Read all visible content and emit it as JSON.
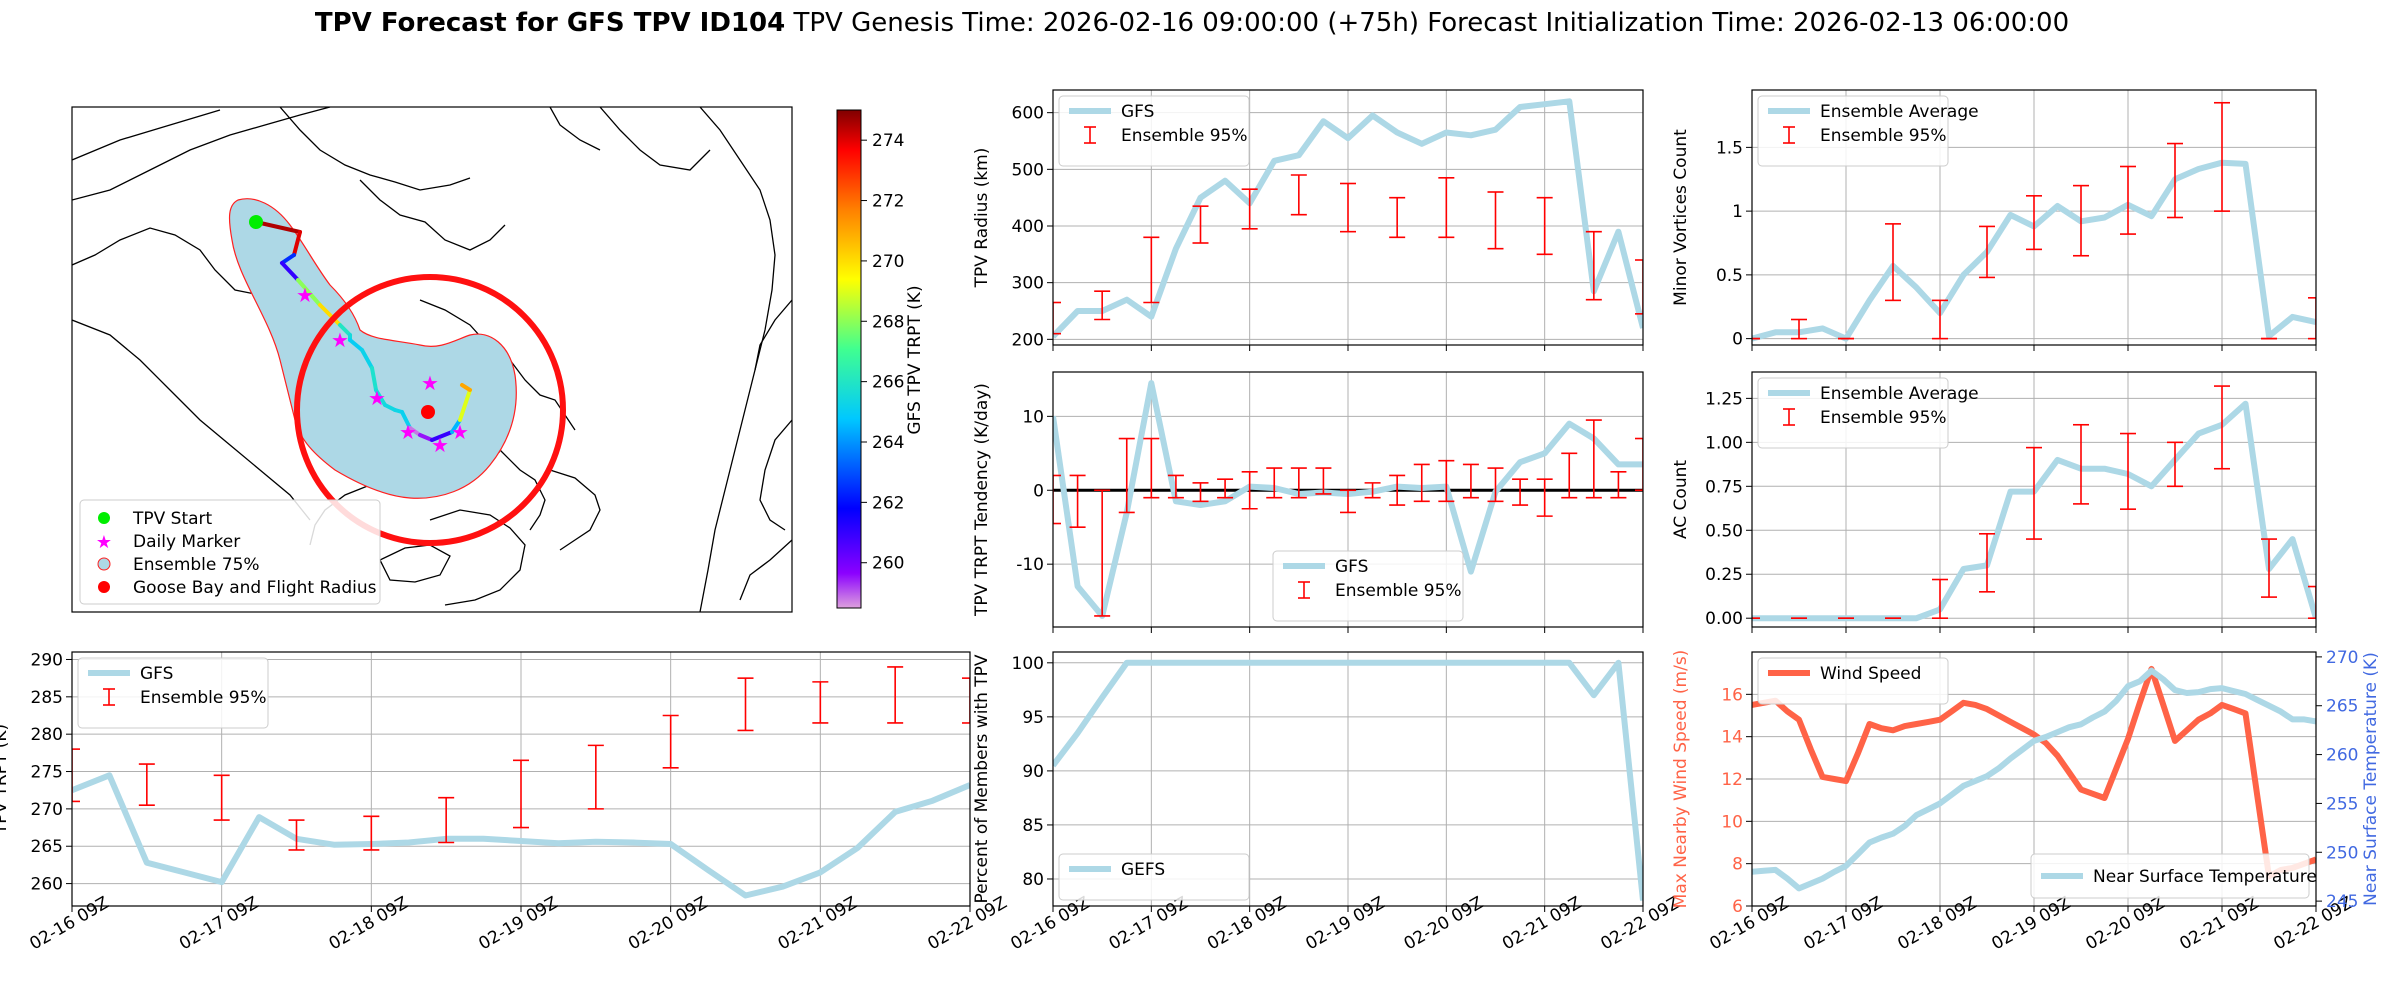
{
  "header": {
    "title_bold": "TPV Forecast for GFS TPV ID104",
    "title_rest": "TPV Genesis Time: 2026-02-16 09:00:00 (+75h)   Forecast Initialization Time: 2026-02-13 06:00:00"
  },
  "colors": {
    "gfs_line": "#add8e6",
    "ens_bar": "#ff0000",
    "wind": "#ff6347",
    "temp_axis": "#4169e1",
    "wind_axis": "#ff6347",
    "map_fill": "#add8e6",
    "flight_radius": "#ff1010",
    "start_marker": "#00ee00",
    "daily_marker": "#ff00ff",
    "goose_bay": "#ff0000"
  },
  "x_dates": [
    "02-16 09Z",
    "02-17 09Z",
    "02-18 09Z",
    "02-19 09Z",
    "02-20 09Z",
    "02-21 09Z",
    "02-22 09Z"
  ],
  "map": {
    "colorbar": {
      "label": "GFS TPV TRPT (K)",
      "ticks": [
        260,
        262,
        264,
        266,
        268,
        270,
        272,
        274
      ],
      "range": [
        258.5,
        275
      ],
      "colormap": "jet-like"
    },
    "legend": [
      "TPV Start",
      "Daily Marker",
      "Ensemble 75%",
      "Goose Bay and Flight Radius"
    ],
    "track_trpt": [
      274.5,
      274.0,
      262.5,
      261.0,
      268.0,
      270.0,
      266.0,
      265.5,
      265.0,
      265.2,
      265.8,
      265.6,
      265.4,
      265.3,
      265.1,
      258.8,
      259.5,
      261.0,
      264.5,
      269.0,
      271.0,
      273.0
    ]
  },
  "chart_data": [
    {
      "id": "radius",
      "type": "line",
      "ylabel": "TPV Radius (km)",
      "ylim": [
        190,
        640
      ],
      "yticks": [
        200,
        300,
        400,
        500,
        600
      ],
      "legend_location": "upper-left",
      "legend": [
        "GFS",
        "Ensemble 95%"
      ],
      "series": [
        {
          "name": "GFS",
          "x": [
            0,
            0.25,
            0.5,
            0.75,
            1,
            1.25,
            1.5,
            1.75,
            2,
            2.25,
            2.5,
            2.75,
            3,
            3.25,
            3.5,
            3.75,
            4,
            4.25,
            4.5,
            4.75,
            5,
            5.25,
            5.5,
            5.75,
            6
          ],
          "values": [
            205,
            250,
            250,
            270,
            240,
            360,
            450,
            480,
            440,
            515,
            525,
            585,
            555,
            595,
            565,
            545,
            565,
            560,
            570,
            610,
            615,
            620,
            285,
            390,
            220
          ]
        }
      ],
      "errorbars": [
        {
          "name": "Ensemble 95%",
          "x": [
            0,
            0.5,
            1,
            1.5,
            2,
            2.5,
            3,
            3.5,
            4,
            4.5,
            5,
            5.5,
            6
          ],
          "low": [
            210,
            235,
            265,
            370,
            395,
            420,
            390,
            380,
            380,
            360,
            350,
            270,
            245
          ],
          "high": [
            265,
            285,
            380,
            435,
            465,
            490,
            475,
            450,
            485,
            460,
            450,
            390,
            340
          ]
        }
      ]
    },
    {
      "id": "tendency",
      "type": "line",
      "ylabel": "TPV TRPT Tendency (K/day)",
      "ylim": [
        -18.5,
        16
      ],
      "yticks": [
        -10,
        0,
        10
      ],
      "legend_location": "lower-center",
      "legend": [
        "GFS",
        "Ensemble 95%"
      ],
      "series": [
        {
          "name": "GFS",
          "x": [
            0,
            0.25,
            0.5,
            0.75,
            1,
            1.25,
            1.5,
            1.75,
            2,
            2.25,
            2.5,
            2.75,
            3,
            3.25,
            3.5,
            3.75,
            4,
            4.25,
            4.5,
            4.75,
            5,
            5.25,
            5.5,
            5.75,
            6
          ],
          "values": [
            10,
            -13,
            -17,
            -3,
            14.5,
            -1.5,
            -2,
            -1.5,
            0.5,
            0.3,
            -0.5,
            -0.3,
            -0.5,
            -0.2,
            0.5,
            0.3,
            0.5,
            -11,
            -0.2,
            3.8,
            5,
            9,
            7,
            3.5,
            3.5
          ]
        }
      ],
      "errorbars": [
        {
          "name": "Ensemble 95%",
          "x": [
            0,
            0.25,
            0.5,
            0.75,
            1,
            1.25,
            1.5,
            1.75,
            2,
            2.25,
            2.5,
            2.75,
            3,
            3.25,
            3.5,
            3.75,
            4,
            4.25,
            4.5,
            4.75,
            5,
            5.25,
            5.5,
            5.75,
            6
          ],
          "low": [
            -4.5,
            -5,
            -17,
            -3,
            -1,
            -1,
            -1.5,
            -1,
            -2.5,
            -1,
            -1,
            -0.5,
            -3,
            -1,
            -2,
            -1.5,
            -1.5,
            -1,
            -1.5,
            -2,
            -3.5,
            -1,
            -1,
            -1,
            0
          ],
          "high": [
            2,
            2,
            0,
            7,
            7,
            2,
            1,
            1.5,
            2.5,
            3,
            3,
            3,
            0,
            1,
            2,
            3.5,
            4,
            3.5,
            3,
            1.5,
            1.5,
            5,
            9.5,
            2.5,
            7
          ]
        }
      ],
      "zero_line": true
    },
    {
      "id": "minor",
      "type": "line",
      "ylabel": "Minor Vortices Count",
      "ylim": [
        -0.05,
        1.95
      ],
      "yticks": [
        0.0,
        0.5,
        1.0,
        1.5
      ],
      "legend_location": "upper-left",
      "legend": [
        "Ensemble Average",
        "Ensemble 95%"
      ],
      "series": [
        {
          "name": "Ensemble Average",
          "x": [
            0,
            0.25,
            0.5,
            0.75,
            1,
            1.25,
            1.5,
            1.75,
            2,
            2.25,
            2.5,
            2.75,
            3,
            3.25,
            3.5,
            3.75,
            4,
            4.25,
            4.5,
            4.75,
            5,
            5.25,
            5.5,
            5.75,
            6
          ],
          "values": [
            0,
            0.05,
            0.05,
            0.08,
            0,
            0.3,
            0.57,
            0.4,
            0.2,
            0.5,
            0.68,
            0.97,
            0.88,
            1.04,
            0.92,
            0.95,
            1.05,
            0.96,
            1.25,
            1.33,
            1.38,
            1.37,
            0.02,
            0.17,
            0.13
          ]
        }
      ],
      "errorbars": [
        {
          "name": "Ensemble 95%",
          "x": [
            0,
            0.5,
            1,
            1.5,
            2,
            2.5,
            3,
            3.5,
            4,
            4.5,
            5,
            5.5,
            6
          ],
          "low": [
            0,
            0,
            0,
            0.3,
            0,
            0.48,
            0.7,
            0.65,
            0.82,
            0.95,
            1.0,
            0,
            0
          ],
          "high": [
            0,
            0.15,
            0,
            0.9,
            0.3,
            0.88,
            1.12,
            1.2,
            1.35,
            1.53,
            1.85,
            0,
            0.32
          ]
        }
      ]
    },
    {
      "id": "ac",
      "type": "line",
      "ylabel": "AC Count",
      "ylim": [
        -0.05,
        1.4
      ],
      "yticks": [
        0.0,
        0.25,
        0.5,
        0.75,
        1.0,
        1.25
      ],
      "yticklabels": [
        "0.00",
        "0.25",
        "0.50",
        "0.75",
        "1.00",
        "1.25"
      ],
      "legend_location": "upper-left",
      "legend": [
        "Ensemble Average",
        "Ensemble 95%"
      ],
      "series": [
        {
          "name": "Ensemble Average",
          "x": [
            0,
            0.25,
            0.5,
            0.75,
            1,
            1.25,
            1.5,
            1.75,
            2,
            2.25,
            2.5,
            2.75,
            3,
            3.25,
            3.5,
            3.75,
            4,
            4.25,
            4.5,
            4.75,
            5,
            5.25,
            5.5,
            5.75,
            6
          ],
          "values": [
            0,
            0,
            0,
            0,
            0,
            0,
            0,
            0,
            0.05,
            0.28,
            0.3,
            0.72,
            0.72,
            0.9,
            0.85,
            0.85,
            0.82,
            0.75,
            0.9,
            1.05,
            1.1,
            1.22,
            0.28,
            0.45,
            0
          ]
        }
      ],
      "errorbars": [
        {
          "name": "Ensemble 95%",
          "x": [
            0,
            0.5,
            1,
            1.5,
            2,
            2.5,
            3,
            3.5,
            4,
            4.5,
            5,
            5.5,
            6
          ],
          "low": [
            0,
            0,
            0,
            0,
            0,
            0.15,
            0.45,
            0.65,
            0.62,
            0.75,
            0.85,
            0.12,
            0
          ],
          "high": [
            0,
            0,
            0,
            0,
            0.22,
            0.48,
            0.97,
            1.1,
            1.05,
            1.0,
            1.32,
            0.45,
            0.18
          ]
        }
      ]
    },
    {
      "id": "trpt",
      "type": "line",
      "ylabel": "TPV TRPT (K)",
      "ylim": [
        257,
        291
      ],
      "yticks": [
        260,
        265,
        270,
        275,
        280,
        285,
        290
      ],
      "legend_location": "upper-left",
      "legend": [
        "GFS",
        "Ensemble 95%"
      ],
      "series": [
        {
          "name": "GFS",
          "x": [
            0,
            0.25,
            0.5,
            0.75,
            1,
            1.25,
            1.5,
            1.75,
            2,
            2.25,
            2.5,
            2.75,
            3,
            3.25,
            3.5,
            3.75,
            4,
            4.25,
            4.5,
            4.75,
            5,
            5.25,
            5.5,
            5.75,
            6
          ],
          "values": [
            272.5,
            274.5,
            262.8,
            261.5,
            260.2,
            268.9,
            266,
            265.2,
            265.3,
            265.5,
            266,
            266,
            265.7,
            265.4,
            265.6,
            265.5,
            265.3,
            261.8,
            258.4,
            259.6,
            261.5,
            264.8,
            269.6,
            271.1,
            273.2
          ]
        }
      ],
      "errorbars": [
        {
          "name": "Ensemble 95%",
          "x": [
            0,
            0.5,
            1,
            1.5,
            2,
            2.5,
            3,
            3.5,
            4,
            4.5,
            5,
            5.5,
            6
          ],
          "low": [
            271,
            270.5,
            268.5,
            264.5,
            264.5,
            265.5,
            267.5,
            270,
            275.5,
            280.5,
            281.5,
            281.5,
            281.5
          ],
          "high": [
            278,
            276,
            274.5,
            268.5,
            269,
            271.5,
            276.5,
            278.5,
            282.5,
            287.5,
            287,
            289,
            287.5
          ]
        }
      ]
    },
    {
      "id": "percent",
      "type": "line",
      "ylabel": "Percent of Members with TPV",
      "ylim": [
        77.5,
        101
      ],
      "yticks": [
        80,
        85,
        90,
        95,
        100
      ],
      "legend_location": "lower-left",
      "legend": [
        "GEFS"
      ],
      "series": [
        {
          "name": "GEFS",
          "x": [
            0,
            0.25,
            0.5,
            0.75,
            1,
            1.5,
            2,
            2.5,
            3,
            3.5,
            4,
            4.5,
            5,
            5.25,
            5.5,
            5.75,
            6
          ],
          "values": [
            90.5,
            93.5,
            96.8,
            100,
            100,
            100,
            100,
            100,
            100,
            100,
            100,
            100,
            100,
            100,
            97,
            100,
            78
          ]
        }
      ]
    },
    {
      "id": "wind_temp",
      "type": "line",
      "ylabel": "Max Nearby Wind Speed (m/s)",
      "ylabel_right": "Near Surface Temperature (K)",
      "ylim": [
        6,
        18
      ],
      "yticks": [
        6,
        8,
        10,
        12,
        14,
        16
      ],
      "ylim_right": [
        244.5,
        270.5
      ],
      "yticks_right": [
        245,
        250,
        255,
        260,
        265,
        270
      ],
      "legend": [
        "Wind Speed",
        "Near Surface Temperature"
      ],
      "series": [
        {
          "name": "Wind Speed",
          "x": [
            0,
            0.125,
            0.25,
            0.375,
            0.5,
            0.625,
            0.75,
            0.875,
            1,
            1.125,
            1.25,
            1.375,
            1.5,
            1.625,
            1.75,
            1.875,
            2,
            2.125,
            2.25,
            2.375,
            2.5,
            2.625,
            2.75,
            2.875,
            3,
            3.125,
            3.25,
            3.375,
            3.5,
            3.625,
            3.75,
            3.875,
            4,
            4.125,
            4.25,
            4.375,
            4.5,
            4.625,
            4.75,
            4.875,
            5,
            5.125,
            5.25,
            5.375,
            5.5,
            5.625,
            5.75,
            5.875,
            6
          ],
          "values": [
            15.5,
            15.6,
            15.7,
            15.2,
            14.8,
            13.4,
            12.1,
            12.0,
            11.9,
            13.2,
            14.6,
            14.4,
            14.3,
            14.5,
            14.6,
            14.7,
            14.8,
            15.2,
            15.6,
            15.5,
            15.3,
            15.0,
            14.7,
            14.4,
            14.1,
            13.7,
            13.1,
            12.3,
            11.5,
            11.3,
            11.1,
            12.5,
            13.9,
            15.6,
            17.2,
            15.5,
            13.8,
            14.3,
            14.8,
            15.1,
            15.5,
            15.3,
            15.1,
            11.2,
            7.4,
            7.7,
            7.8,
            8.0,
            8.2
          ]
        },
        {
          "name": "Near Surface Temperature",
          "x": [
            0,
            0.125,
            0.25,
            0.375,
            0.5,
            0.625,
            0.75,
            0.875,
            1,
            1.125,
            1.25,
            1.375,
            1.5,
            1.625,
            1.75,
            1.875,
            2,
            2.125,
            2.25,
            2.375,
            2.5,
            2.625,
            2.75,
            2.875,
            3,
            3.125,
            3.25,
            3.375,
            3.5,
            3.625,
            3.75,
            3.875,
            4,
            4.125,
            4.25,
            4.375,
            4.5,
            4.625,
            4.75,
            4.875,
            5,
            5.125,
            5.25,
            5.375,
            5.5,
            5.625,
            5.75,
            5.875,
            6
          ],
          "values": [
            248.0,
            248.1,
            248.2,
            247.3,
            246.3,
            246.8,
            247.3,
            248.0,
            248.6,
            249.8,
            251.0,
            251.5,
            251.9,
            252.7,
            253.8,
            254.4,
            255.0,
            255.9,
            256.8,
            257.3,
            257.8,
            258.6,
            259.6,
            260.5,
            261.4,
            261.8,
            262.3,
            262.8,
            263.1,
            263.8,
            264.4,
            265.5,
            267.0,
            267.5,
            268.6,
            267.7,
            266.6,
            266.3,
            266.4,
            266.7,
            266.8,
            266.5,
            266.2,
            265.6,
            265.0,
            264.4,
            263.6,
            263.6,
            263.4
          ]
        }
      ]
    }
  ]
}
